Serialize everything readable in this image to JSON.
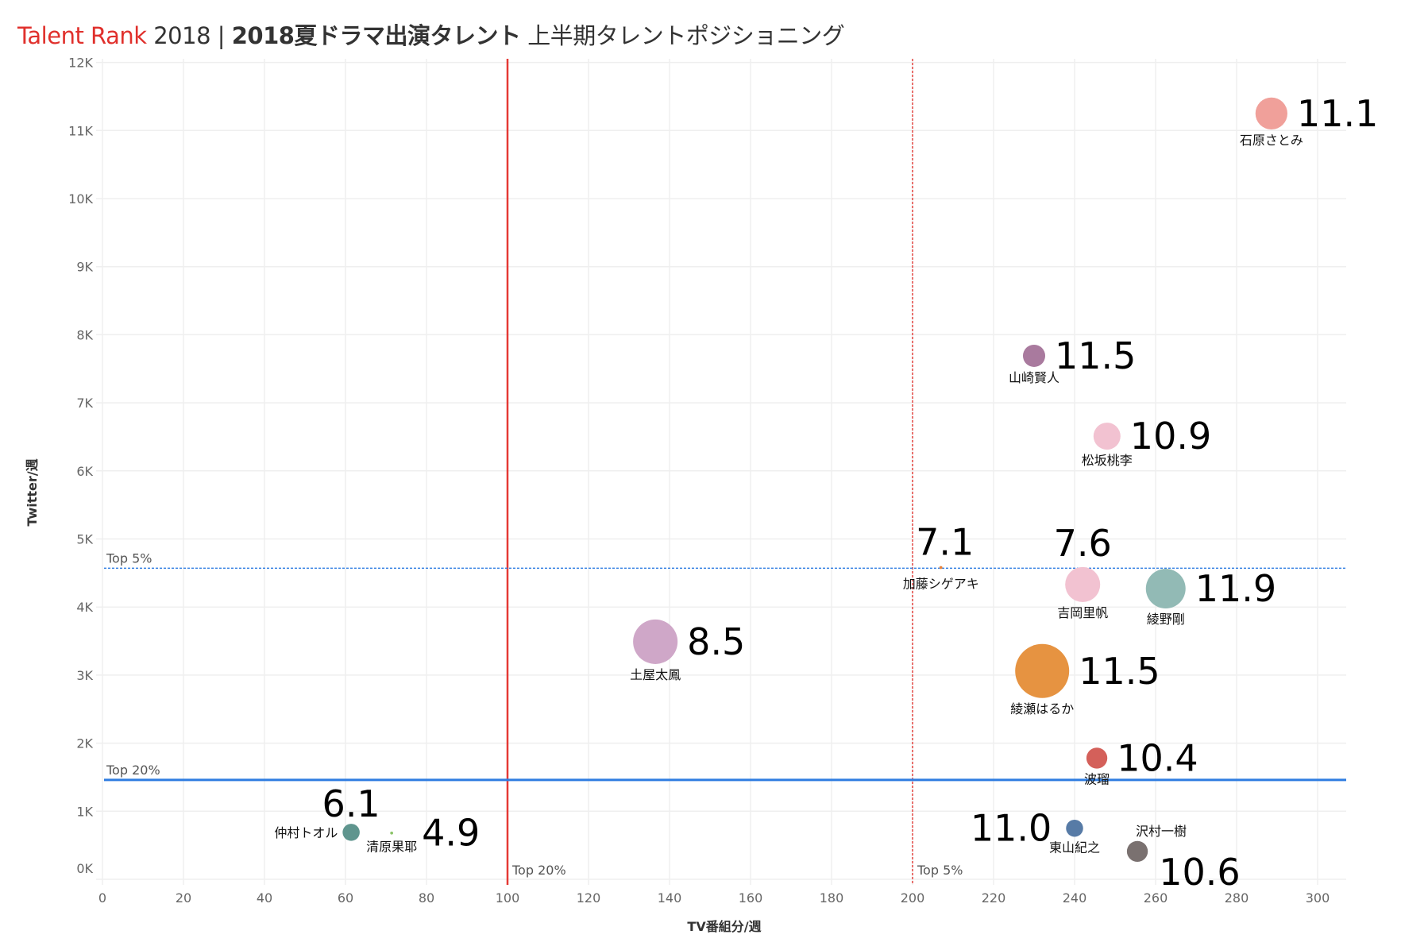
{
  "header": {
    "brand": "Talent Rank",
    "year": "2018 | ",
    "title_bold": "2018夏ドラマ出演タレント",
    "title_rest": "上半期タレントポジショニング"
  },
  "colors": {
    "brand": "#e0302c",
    "top20_vertical": "#e53935",
    "top5_vertical": "#e53935",
    "top20_horizontal": "#2f7de1",
    "top5_horizontal": "#2f7de1",
    "grid": "#efefef"
  },
  "chart_data": {
    "type": "scatter",
    "title": "Talent Rank 2018 | 2018夏ドラマ出演タレント 上半期タレントポジショニング",
    "xlabel": "TV番組分/週",
    "ylabel": "Twitter/週",
    "xlim": [
      0,
      307
    ],
    "ylim": [
      0,
      12000
    ],
    "xticks": [
      0,
      20,
      40,
      60,
      80,
      100,
      120,
      140,
      160,
      180,
      200,
      220,
      240,
      260,
      280,
      300
    ],
    "xtick_labels": [
      "0",
      "20",
      "40",
      "60",
      "80",
      "100",
      "120",
      "140",
      "160",
      "180",
      "200",
      "220",
      "240",
      "260",
      "280",
      "300"
    ],
    "yticks": [
      0,
      1000,
      2000,
      3000,
      4000,
      5000,
      6000,
      7000,
      8000,
      9000,
      10000,
      11000,
      12000
    ],
    "ytick_labels": [
      "0K",
      "1K",
      "2K",
      "3K",
      "4K",
      "5K",
      "6K",
      "7K",
      "8K",
      "9K",
      "10K",
      "11K",
      "12K"
    ],
    "grid": true,
    "reference_lines": [
      {
        "axis": "x",
        "value": 100,
        "label": "Top 20%",
        "style": "solid",
        "color": "#e53935"
      },
      {
        "axis": "x",
        "value": 200,
        "label": "Top 5%",
        "style": "dotted",
        "color": "#e53935"
      },
      {
        "axis": "y",
        "value": 1460,
        "label": "Top 20%",
        "style": "solid",
        "color": "#2f7de1"
      },
      {
        "axis": "y",
        "value": 4570,
        "label": "Top 5%",
        "style": "dotted",
        "color": "#2f7de1"
      }
    ],
    "points": [
      {
        "name": "石原さとみ",
        "score": "11.1",
        "x": 288.6,
        "y": 11250,
        "size": 35,
        "color": "#f0a09a",
        "label_pos": "below",
        "score_pos": "right"
      },
      {
        "name": "山崎賢人",
        "score": "11.5",
        "x": 230,
        "y": 7690,
        "size": 17,
        "color": "#a97a9e",
        "label_pos": "below",
        "score_pos": "right"
      },
      {
        "name": "松坂桃李",
        "score": "10.9",
        "x": 248,
        "y": 6510,
        "size": 25,
        "color": "#f2c2d1",
        "label_pos": "below",
        "score_pos": "right"
      },
      {
        "name": "加藤シゲアキ",
        "score": "7.1",
        "x": 207,
        "y": 4580,
        "size": 0.3,
        "color": "#e8833a",
        "label_pos": "below",
        "score_pos": "above"
      },
      {
        "name": "吉岡里帆",
        "score": "7.6",
        "x": 242,
        "y": 4330,
        "size": 42,
        "color": "#f2c2d1",
        "label_pos": "below",
        "score_pos": "above"
      },
      {
        "name": "綾野剛",
        "score": "11.9",
        "x": 262.5,
        "y": 4270,
        "size": 54,
        "color": "#92bab5",
        "label_pos": "below",
        "score_pos": "right"
      },
      {
        "name": "土屋太鳳",
        "score": "8.5",
        "x": 136.5,
        "y": 3490,
        "size": 68,
        "color": "#cfa7c8",
        "label_pos": "below",
        "score_pos": "right"
      },
      {
        "name": "綾瀬はるか",
        "score": "11.5",
        "x": 232,
        "y": 3060,
        "size": 100,
        "color": "#e69341",
        "label_pos": "below",
        "score_pos": "right"
      },
      {
        "name": "波瑠",
        "score": "10.4",
        "x": 245.5,
        "y": 1780,
        "size": 15,
        "color": "#d4605a",
        "label_pos": "below",
        "score_pos": "right"
      },
      {
        "name": "仲村トオル",
        "score": "6.1",
        "x": 61.4,
        "y": 690,
        "size": 10,
        "color": "#5f958e",
        "label_pos": "left",
        "score_pos": "above"
      },
      {
        "name": "清原果耶",
        "score": "4.9",
        "x": 71.4,
        "y": 680,
        "size": 0.3,
        "color": "#8dc46a",
        "label_pos": "below",
        "score_pos": "right"
      },
      {
        "name": "東山紀之",
        "score": "11.0",
        "x": 240,
        "y": 750,
        "size": 10,
        "color": "#577ba6",
        "label_pos": "below",
        "score_pos": "left"
      },
      {
        "name": "沢村一樹",
        "score": "10.6",
        "x": 255.5,
        "y": 410,
        "size": 15,
        "color": "#7a7170",
        "label_pos": "above-right",
        "score_pos": "below-right"
      }
    ]
  }
}
